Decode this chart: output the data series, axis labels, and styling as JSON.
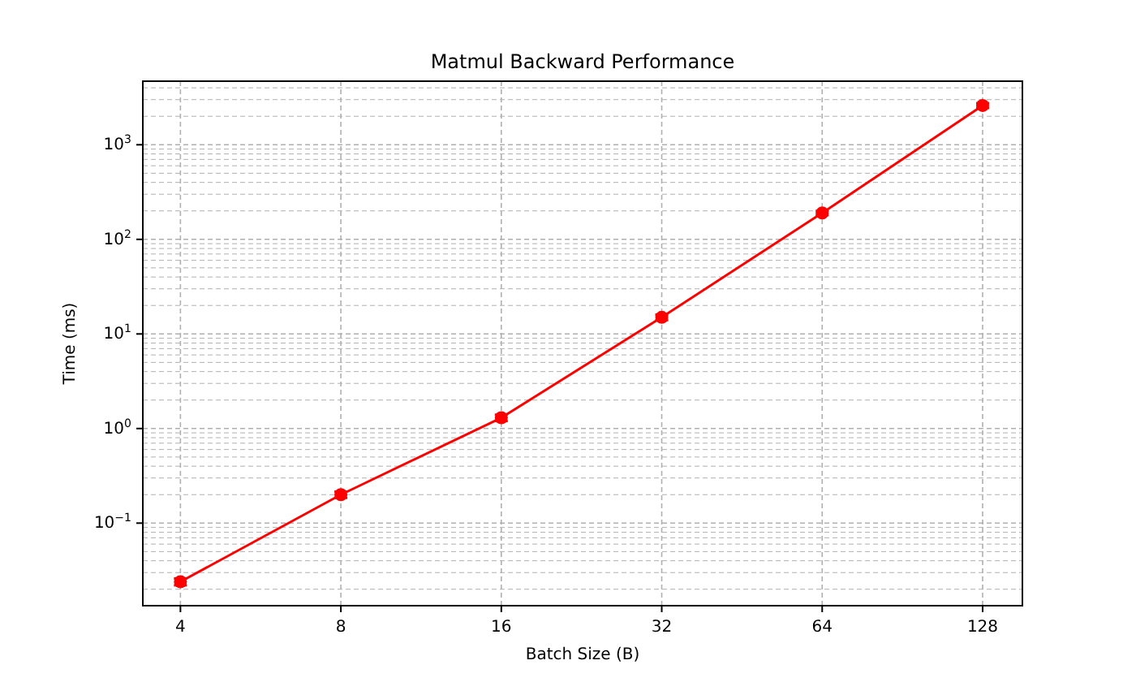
{
  "chart_data": {
    "type": "line",
    "title": "Matmul Backward Performance",
    "xlabel": "Batch Size (B)",
    "ylabel": "Time (ms)",
    "x": [
      4,
      8,
      16,
      32,
      64,
      128
    ],
    "series": [
      {
        "color": "#ff0000",
        "values": [
          0.024,
          0.2,
          1.3,
          15,
          190,
          2600
        ],
        "errors": [
          0.002,
          0.015,
          0.1,
          1,
          10,
          150
        ]
      }
    ],
    "log": "xy",
    "xlim": [
      3.4,
      152
    ],
    "xticks": [
      4,
      8,
      16,
      32,
      64,
      128
    ],
    "ylim": [
      0.0134,
      4700
    ],
    "yticks": [
      {
        "value": 0.02,
        "label": null
      },
      {
        "value": 0.03,
        "label": null
      },
      {
        "value": 0.04,
        "label": null
      },
      {
        "value": 0.05,
        "label": null
      },
      {
        "value": 0.06,
        "label": null
      },
      {
        "value": 0.07,
        "label": null
      },
      {
        "value": 0.08,
        "label": null
      },
      {
        "value": 0.09,
        "label": null
      },
      {
        "value": 0.1,
        "label": "10$^{−1}$"
      },
      {
        "value": 0.2,
        "label": null
      },
      {
        "value": 0.3,
        "label": null
      },
      {
        "value": 0.4,
        "label": null
      },
      {
        "value": 0.5,
        "label": null
      },
      {
        "value": 0.6,
        "label": null
      },
      {
        "value": 0.7,
        "label": null
      },
      {
        "value": 0.8,
        "label": null
      },
      {
        "value": 0.9,
        "label": null
      },
      {
        "value": 1,
        "label": "10$^{0}$"
      },
      {
        "value": 2,
        "label": null
      },
      {
        "value": 3,
        "label": null
      },
      {
        "value": 4,
        "label": null
      },
      {
        "value": 5,
        "label": null
      },
      {
        "value": 6,
        "label": null
      },
      {
        "value": 7,
        "label": null
      },
      {
        "value": 8,
        "label": null
      },
      {
        "value": 9,
        "label": null
      },
      {
        "value": 10,
        "label": "10$^{1}$"
      },
      {
        "value": 20,
        "label": null
      },
      {
        "value": 30,
        "label": null
      },
      {
        "value": 40,
        "label": null
      },
      {
        "value": 50,
        "label": null
      },
      {
        "value": 60,
        "label": null
      },
      {
        "value": 70,
        "label": null
      },
      {
        "value": 80,
        "label": null
      },
      {
        "value": 90,
        "label": null
      },
      {
        "value": 100,
        "label": "10$^{2}$"
      },
      {
        "value": 200,
        "label": null
      },
      {
        "value": 300,
        "label": null
      },
      {
        "value": 400,
        "label": null
      },
      {
        "value": 500,
        "label": null
      },
      {
        "value": 600,
        "label": null
      },
      {
        "value": 700,
        "label": null
      },
      {
        "value": 800,
        "label": null
      },
      {
        "value": 900,
        "label": null
      },
      {
        "value": 1000,
        "label": "10$^{3}$"
      },
      {
        "value": 2000,
        "label": null
      },
      {
        "value": 3000,
        "label": null
      },
      {
        "value": 4000,
        "label": null
      }
    ],
    "grid": true,
    "marker": "circle",
    "line_style": "solid"
  }
}
